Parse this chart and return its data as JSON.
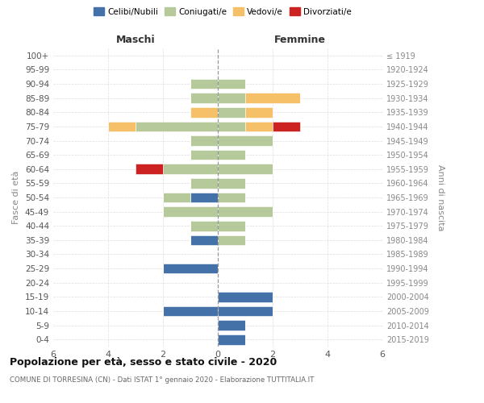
{
  "age_groups": [
    "0-4",
    "5-9",
    "10-14",
    "15-19",
    "20-24",
    "25-29",
    "30-34",
    "35-39",
    "40-44",
    "45-49",
    "50-54",
    "55-59",
    "60-64",
    "65-69",
    "70-74",
    "75-79",
    "80-84",
    "85-89",
    "90-94",
    "95-99",
    "100+"
  ],
  "birth_years": [
    "2015-2019",
    "2010-2014",
    "2005-2009",
    "2000-2004",
    "1995-1999",
    "1990-1994",
    "1985-1989",
    "1980-1984",
    "1975-1979",
    "1970-1974",
    "1965-1969",
    "1960-1964",
    "1955-1959",
    "1950-1954",
    "1945-1949",
    "1940-1944",
    "1935-1939",
    "1930-1934",
    "1925-1929",
    "1920-1924",
    "≤ 1919"
  ],
  "colors": {
    "celibi": "#4472a8",
    "coniugati": "#b5c99a",
    "vedovi": "#f5c068",
    "divorziati": "#cc2222"
  },
  "males": {
    "celibi": [
      0,
      0,
      2,
      0,
      0,
      2,
      0,
      1,
      0,
      0,
      1,
      0,
      0,
      0,
      0,
      0,
      0,
      0,
      0,
      0,
      0
    ],
    "coniugati": [
      0,
      0,
      0,
      0,
      0,
      0,
      0,
      0,
      1,
      2,
      1,
      1,
      2,
      1,
      1,
      3,
      0,
      1,
      1,
      0,
      0
    ],
    "vedovi": [
      0,
      0,
      0,
      0,
      0,
      0,
      0,
      0,
      0,
      0,
      0,
      0,
      0,
      0,
      0,
      1,
      1,
      0,
      0,
      0,
      0
    ],
    "divorziati": [
      0,
      0,
      0,
      0,
      0,
      0,
      0,
      0,
      0,
      0,
      0,
      0,
      1,
      0,
      0,
      0,
      0,
      0,
      0,
      0,
      0
    ]
  },
  "females": {
    "celibi": [
      1,
      1,
      2,
      2,
      0,
      0,
      0,
      0,
      0,
      0,
      0,
      0,
      0,
      0,
      0,
      0,
      0,
      0,
      0,
      0,
      0
    ],
    "coniugati": [
      0,
      0,
      0,
      0,
      0,
      0,
      0,
      1,
      1,
      2,
      1,
      1,
      2,
      1,
      2,
      1,
      1,
      1,
      1,
      0,
      0
    ],
    "vedovi": [
      0,
      0,
      0,
      0,
      0,
      0,
      0,
      0,
      0,
      0,
      0,
      0,
      0,
      0,
      0,
      1,
      1,
      2,
      0,
      0,
      0
    ],
    "divorziati": [
      0,
      0,
      0,
      0,
      0,
      0,
      0,
      0,
      0,
      0,
      0,
      0,
      0,
      0,
      0,
      1,
      0,
      0,
      0,
      0,
      0
    ]
  },
  "xlim": 6,
  "title": "Popolazione per età, sesso e stato civile - 2020",
  "subtitle": "COMUNE DI TORRESINA (CN) - Dati ISTAT 1° gennaio 2020 - Elaborazione TUTTITALIA.IT",
  "ylabel_left": "Fasce di età",
  "ylabel_right": "Anni di nascita",
  "header_left": "Maschi",
  "header_right": "Femmine"
}
